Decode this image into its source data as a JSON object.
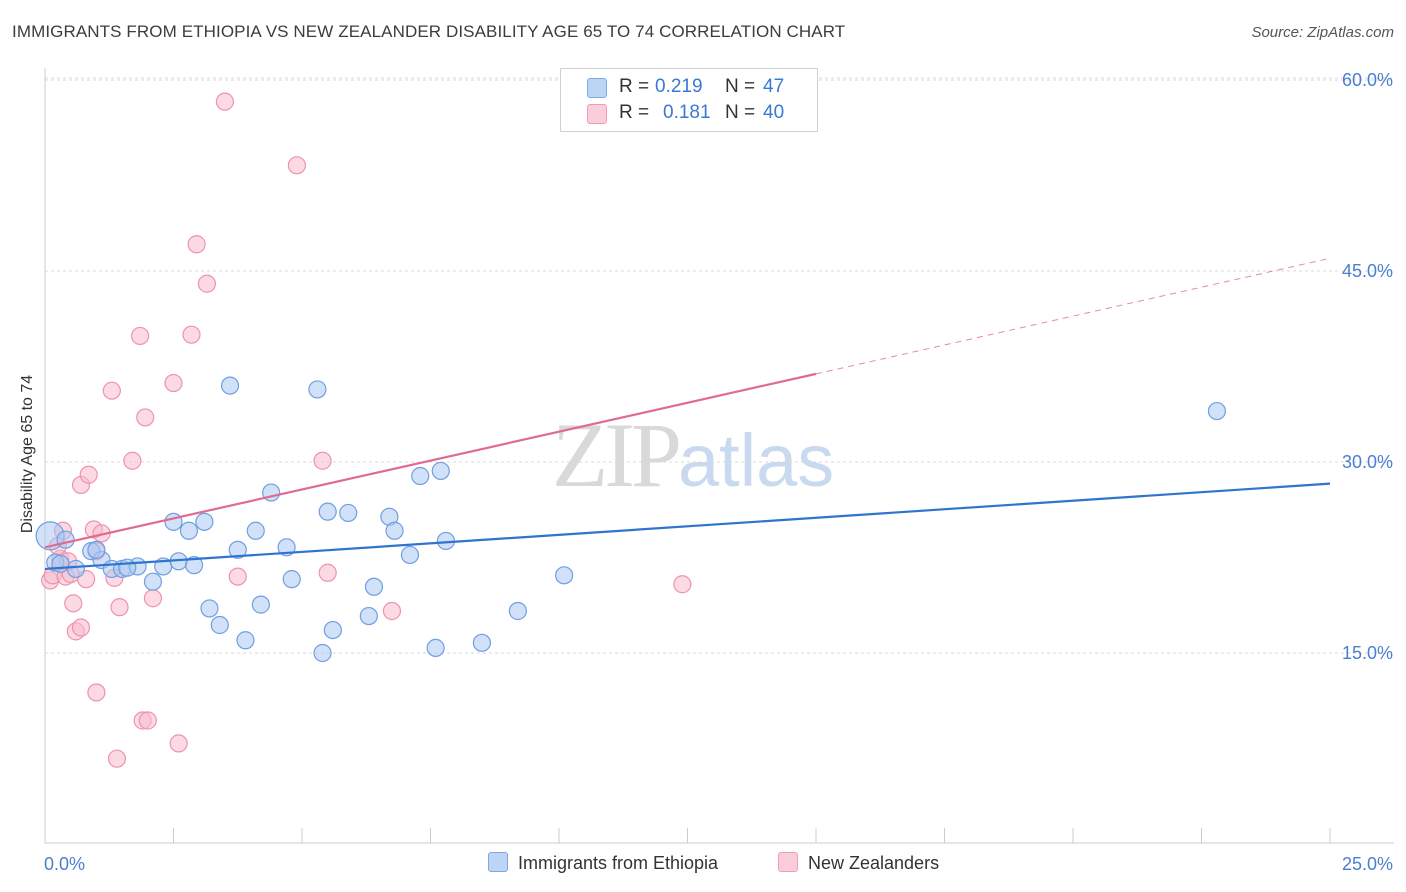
{
  "title": "IMMIGRANTS FROM ETHIOPIA VS NEW ZEALANDER DISABILITY AGE 65 TO 74 CORRELATION CHART",
  "source": "Source: ZipAtlas.com",
  "watermark": {
    "zip": "ZIP",
    "atlas": "atlas"
  },
  "legend": {
    "rows": [
      {
        "r_label": "R =",
        "r_value": "0.219",
        "n_label": "N =",
        "n_value": "47"
      },
      {
        "r_label": "R =",
        "r_value": "0.181",
        "n_label": "N =",
        "n_value": "40"
      }
    ]
  },
  "bottom_legend": {
    "series1": "Immigrants from Ethiopia",
    "series2": "New Zealanders"
  },
  "colors": {
    "ethiopia_fill": "#a9c8f2",
    "ethiopia_stroke": "#6f9fe0",
    "ethiopia_line": "#2f74d0",
    "nz_fill": "#f7bccd",
    "nz_stroke": "#ee93ad",
    "nz_line": "#e06b92",
    "tick_text": "#4a7fd0",
    "grid": "#d9d9d9"
  },
  "chart_data": {
    "type": "scatter",
    "title": "IMMIGRANTS FROM ETHIOPIA VS NEW ZEALANDER DISABILITY AGE 65 TO 74 CORRELATION CHART",
    "xlabel": "",
    "ylabel": "Disability Age 65 to 74",
    "xlim": [
      0,
      25
    ],
    "ylim": [
      0,
      62.5
    ],
    "x_tick_labels": [
      "0.0%",
      "25.0%"
    ],
    "y_ticks": [
      15,
      30,
      45,
      60
    ],
    "y_tick_labels": [
      "15.0%",
      "30.0%",
      "45.0%",
      "60.0%"
    ],
    "grid": true,
    "series": [
      {
        "name": "Immigrants from Ethiopia",
        "r": 0.219,
        "n": 47,
        "trend": {
          "x0": 0,
          "y0": 21.6,
          "x1": 25,
          "y1": 28.3,
          "solid_until": 25
        },
        "points": [
          [
            0.1,
            24.2
          ],
          [
            0.2,
            22.1
          ],
          [
            0.4,
            23.9
          ],
          [
            0.6,
            21.6
          ],
          [
            0.9,
            23.0
          ],
          [
            1.1,
            22.3
          ],
          [
            1.3,
            21.6
          ],
          [
            1.5,
            21.6
          ],
          [
            1.8,
            21.8
          ],
          [
            2.1,
            20.6
          ],
          [
            2.3,
            21.8
          ],
          [
            2.5,
            25.3
          ],
          [
            2.6,
            22.2
          ],
          [
            2.8,
            24.6
          ],
          [
            2.9,
            21.9
          ],
          [
            3.1,
            25.3
          ],
          [
            3.2,
            18.5
          ],
          [
            3.4,
            17.2
          ],
          [
            3.6,
            36.0
          ],
          [
            3.75,
            23.1
          ],
          [
            3.9,
            16.0
          ],
          [
            4.1,
            24.6
          ],
          [
            4.2,
            18.8
          ],
          [
            4.4,
            27.6
          ],
          [
            4.7,
            23.3
          ],
          [
            4.8,
            20.8
          ],
          [
            5.3,
            35.7
          ],
          [
            5.4,
            15.0
          ],
          [
            5.5,
            26.1
          ],
          [
            5.6,
            16.8
          ],
          [
            5.9,
            26.0
          ],
          [
            6.3,
            17.9
          ],
          [
            6.4,
            20.2
          ],
          [
            6.7,
            25.7
          ],
          [
            6.8,
            24.6
          ],
          [
            7.1,
            22.7
          ],
          [
            7.3,
            28.9
          ],
          [
            7.6,
            15.4
          ],
          [
            7.7,
            29.3
          ],
          [
            7.8,
            23.8
          ],
          [
            8.5,
            15.8
          ],
          [
            9.2,
            18.3
          ],
          [
            10.1,
            21.1
          ],
          [
            22.8,
            34.0
          ],
          [
            0.3,
            22.0
          ],
          [
            1.0,
            23.1
          ],
          [
            1.6,
            21.7
          ]
        ]
      },
      {
        "name": "New Zealanders",
        "r": 0.181,
        "n": 40,
        "trend": {
          "x0": 0,
          "y0": 23.3,
          "x1": 25,
          "y1": 46.0,
          "solid_until": 15.0
        },
        "points": [
          [
            0.1,
            20.7
          ],
          [
            0.15,
            21.1
          ],
          [
            0.3,
            22.4
          ],
          [
            0.35,
            24.6
          ],
          [
            0.4,
            21.0
          ],
          [
            0.5,
            21.2
          ],
          [
            0.55,
            18.9
          ],
          [
            0.6,
            16.7
          ],
          [
            0.7,
            28.2
          ],
          [
            0.7,
            17.0
          ],
          [
            0.8,
            20.8
          ],
          [
            0.85,
            29.0
          ],
          [
            0.95,
            24.7
          ],
          [
            1.0,
            11.9
          ],
          [
            1.1,
            24.4
          ],
          [
            1.3,
            35.6
          ],
          [
            1.35,
            20.9
          ],
          [
            1.4,
            6.7
          ],
          [
            1.45,
            18.6
          ],
          [
            1.7,
            30.1
          ],
          [
            1.85,
            39.9
          ],
          [
            1.9,
            9.7
          ],
          [
            1.95,
            33.5
          ],
          [
            2.0,
            9.7
          ],
          [
            2.1,
            19.3
          ],
          [
            2.5,
            36.2
          ],
          [
            2.6,
            7.9
          ],
          [
            2.85,
            40.0
          ],
          [
            2.95,
            47.1
          ],
          [
            3.15,
            44.0
          ],
          [
            3.5,
            58.3
          ],
          [
            3.75,
            21.0
          ],
          [
            4.9,
            53.3
          ],
          [
            5.4,
            30.1
          ],
          [
            5.5,
            21.3
          ],
          [
            6.75,
            18.3
          ],
          [
            12.4,
            20.4
          ],
          [
            0.25,
            23.4
          ],
          [
            1.0,
            23.0
          ],
          [
            0.45,
            22.2
          ]
        ]
      }
    ]
  }
}
